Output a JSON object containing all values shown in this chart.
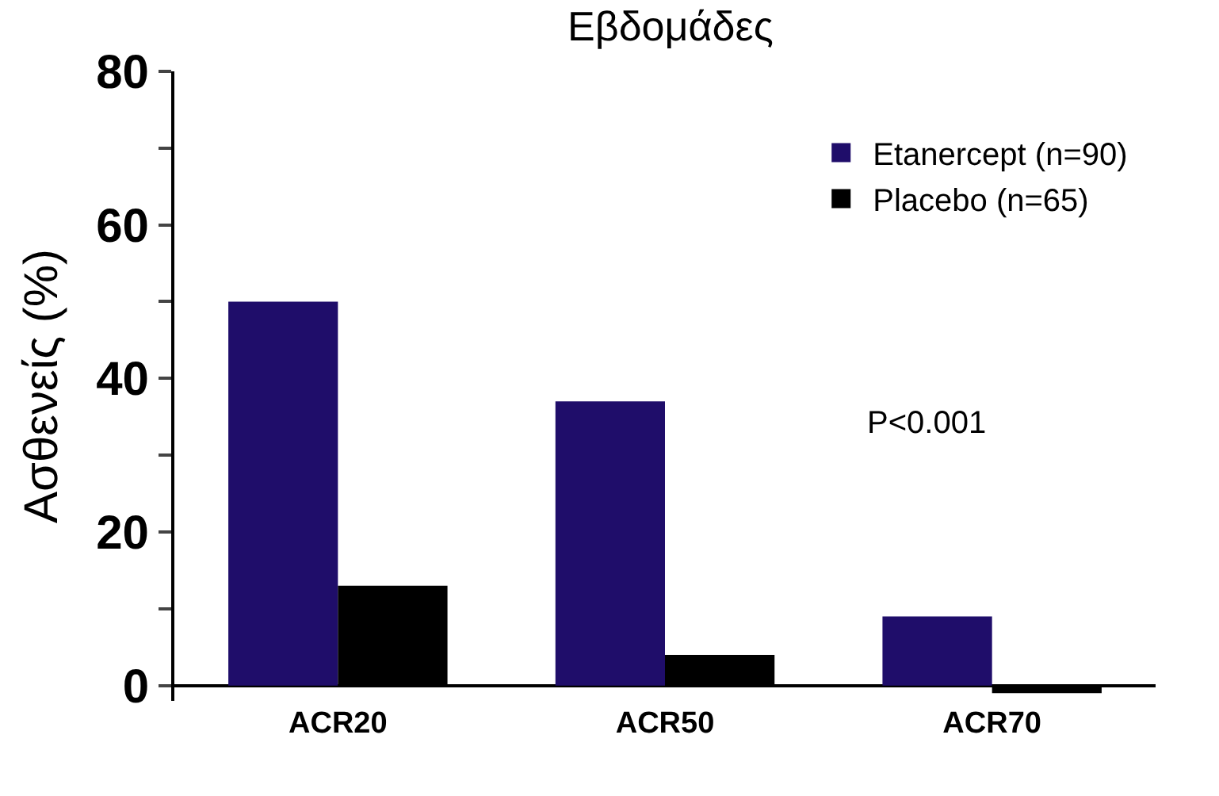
{
  "chart_data": {
    "type": "bar",
    "title": "Εβδομάδες",
    "ylabel": "Ασθενείς (%)",
    "categories": [
      "ACR20",
      "ACR50",
      "ACR70"
    ],
    "series": [
      {
        "name": "Etanercept (n=90)",
        "color": "#1f0d6a",
        "values": [
          50,
          37,
          9
        ]
      },
      {
        "name": "Placebo (n=65)",
        "color": "#000000",
        "values": [
          13,
          4,
          -1
        ]
      }
    ],
    "ylim": [
      -2,
      80
    ],
    "yticks": [
      0,
      {
        "value": 10,
        "label": null
      },
      20,
      {
        "value": 30,
        "label": null
      },
      40,
      {
        "value": 50,
        "label": null
      },
      60,
      {
        "value": 70,
        "label": null
      },
      80
    ],
    "annotations": [
      "P<0.001"
    ],
    "legend": "top right"
  }
}
